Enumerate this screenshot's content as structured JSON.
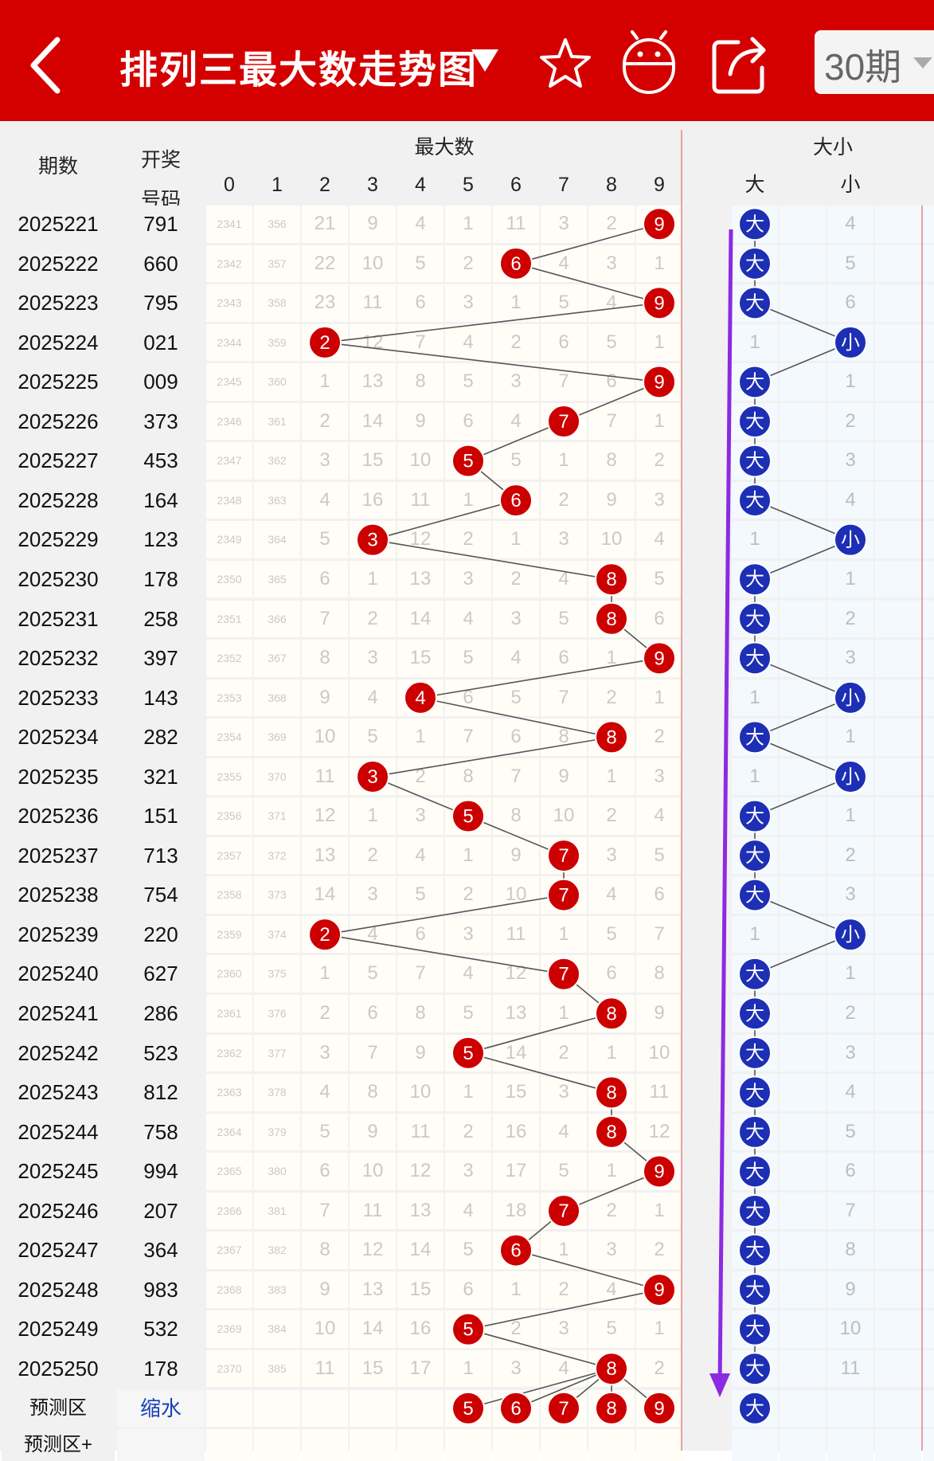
{
  "header": {
    "title": "排列三最大数走势图",
    "period_selector": "30期",
    "icons": [
      "back-arrow-icon",
      "dropdown-triangle-icon",
      "star-icon",
      "robot-icon",
      "share-icon",
      "chevron-down-icon"
    ]
  },
  "table_headers": {
    "period": "期数",
    "draw_top": "开奖",
    "draw_bottom": "号码",
    "max_group": "最大数",
    "size_group": "大小",
    "digits": [
      "0",
      "1",
      "2",
      "3",
      "4",
      "5",
      "6",
      "7",
      "8",
      "9"
    ],
    "size_cols": [
      "大",
      "",
      "小",
      ""
    ]
  },
  "colors": {
    "header_bg": "#d40000",
    "ball_red": "#cc0000",
    "ball_blue": "#1d2fb5",
    "trend_line": "#8a2be2"
  },
  "rows": [
    {
      "period": "2025221",
      "draw": "791",
      "cells": [
        "2341",
        "356",
        "21",
        "9",
        "4",
        "1",
        "11",
        "3",
        "2",
        "9"
      ],
      "max": 9,
      "size": "大",
      "size_cells": [
        "大",
        "",
        "4",
        ""
      ]
    },
    {
      "period": "2025222",
      "draw": "660",
      "cells": [
        "2342",
        "357",
        "22",
        "10",
        "5",
        "2",
        "6",
        "4",
        "3",
        "1"
      ],
      "max": 6,
      "size": "大",
      "size_cells": [
        "大",
        "",
        "5",
        ""
      ]
    },
    {
      "period": "2025223",
      "draw": "795",
      "cells": [
        "2343",
        "358",
        "23",
        "11",
        "6",
        "3",
        "1",
        "5",
        "4",
        "9"
      ],
      "max": 9,
      "size": "大",
      "size_cells": [
        "大",
        "",
        "6",
        ""
      ]
    },
    {
      "period": "2025224",
      "draw": "021",
      "cells": [
        "2344",
        "359",
        "2",
        "12",
        "7",
        "4",
        "2",
        "6",
        "5",
        "1"
      ],
      "max": 2,
      "size": "小",
      "size_cells": [
        "1",
        "",
        "小",
        ""
      ]
    },
    {
      "period": "2025225",
      "draw": "009",
      "cells": [
        "2345",
        "360",
        "1",
        "13",
        "8",
        "5",
        "3",
        "7",
        "6",
        "9"
      ],
      "max": 9,
      "size": "大",
      "size_cells": [
        "大",
        "",
        "1",
        ""
      ]
    },
    {
      "period": "2025226",
      "draw": "373",
      "cells": [
        "2346",
        "361",
        "2",
        "14",
        "9",
        "6",
        "4",
        "7",
        "7",
        "1"
      ],
      "max": 7,
      "size": "大",
      "size_cells": [
        "大",
        "",
        "2",
        ""
      ]
    },
    {
      "period": "2025227",
      "draw": "453",
      "cells": [
        "2347",
        "362",
        "3",
        "15",
        "10",
        "5",
        "5",
        "1",
        "8",
        "2"
      ],
      "max": 5,
      "size": "大",
      "size_cells": [
        "大",
        "",
        "3",
        ""
      ]
    },
    {
      "period": "2025228",
      "draw": "164",
      "cells": [
        "2348",
        "363",
        "4",
        "16",
        "11",
        "1",
        "6",
        "2",
        "9",
        "3"
      ],
      "max": 6,
      "size": "大",
      "size_cells": [
        "大",
        "",
        "4",
        ""
      ]
    },
    {
      "period": "2025229",
      "draw": "123",
      "cells": [
        "2349",
        "364",
        "5",
        "3",
        "12",
        "2",
        "1",
        "3",
        "10",
        "4"
      ],
      "max": 3,
      "size": "小",
      "size_cells": [
        "1",
        "",
        "小",
        ""
      ]
    },
    {
      "period": "2025230",
      "draw": "178",
      "cells": [
        "2350",
        "365",
        "6",
        "1",
        "13",
        "3",
        "2",
        "4",
        "8",
        "5"
      ],
      "max": 8,
      "size": "大",
      "size_cells": [
        "大",
        "",
        "1",
        ""
      ]
    },
    {
      "period": "2025231",
      "draw": "258",
      "cells": [
        "2351",
        "366",
        "7",
        "2",
        "14",
        "4",
        "3",
        "5",
        "8",
        "6"
      ],
      "max": 8,
      "size": "大",
      "size_cells": [
        "大",
        "",
        "2",
        ""
      ]
    },
    {
      "period": "2025232",
      "draw": "397",
      "cells": [
        "2352",
        "367",
        "8",
        "3",
        "15",
        "5",
        "4",
        "6",
        "1",
        "9"
      ],
      "max": 9,
      "size": "大",
      "size_cells": [
        "大",
        "",
        "3",
        ""
      ]
    },
    {
      "period": "2025233",
      "draw": "143",
      "cells": [
        "2353",
        "368",
        "9",
        "4",
        "4",
        "6",
        "5",
        "7",
        "2",
        "1"
      ],
      "max": 4,
      "size": "小",
      "size_cells": [
        "1",
        "",
        "小",
        ""
      ]
    },
    {
      "period": "2025234",
      "draw": "282",
      "cells": [
        "2354",
        "369",
        "10",
        "5",
        "1",
        "7",
        "6",
        "8",
        "8",
        "2"
      ],
      "max": 8,
      "size": "大",
      "size_cells": [
        "大",
        "",
        "1",
        ""
      ]
    },
    {
      "period": "2025235",
      "draw": "321",
      "cells": [
        "2355",
        "370",
        "11",
        "3",
        "2",
        "8",
        "7",
        "9",
        "1",
        "3"
      ],
      "max": 3,
      "size": "小",
      "size_cells": [
        "1",
        "",
        "小",
        ""
      ]
    },
    {
      "period": "2025236",
      "draw": "151",
      "cells": [
        "2356",
        "371",
        "12",
        "1",
        "3",
        "5",
        "8",
        "10",
        "2",
        "4"
      ],
      "max": 5,
      "size": "大",
      "size_cells": [
        "大",
        "",
        "1",
        ""
      ]
    },
    {
      "period": "2025237",
      "draw": "713",
      "cells": [
        "2357",
        "372",
        "13",
        "2",
        "4",
        "1",
        "9",
        "7",
        "3",
        "5"
      ],
      "max": 7,
      "size": "大",
      "size_cells": [
        "大",
        "",
        "2",
        ""
      ]
    },
    {
      "period": "2025238",
      "draw": "754",
      "cells": [
        "2358",
        "373",
        "14",
        "3",
        "5",
        "2",
        "10",
        "7",
        "4",
        "6"
      ],
      "max": 7,
      "size": "大",
      "size_cells": [
        "大",
        "",
        "3",
        ""
      ]
    },
    {
      "period": "2025239",
      "draw": "220",
      "cells": [
        "2359",
        "374",
        "2",
        "4",
        "6",
        "3",
        "11",
        "1",
        "5",
        "7"
      ],
      "max": 2,
      "size": "小",
      "size_cells": [
        "1",
        "",
        "小",
        ""
      ]
    },
    {
      "period": "2025240",
      "draw": "627",
      "cells": [
        "2360",
        "375",
        "1",
        "5",
        "7",
        "4",
        "12",
        "7",
        "6",
        "8"
      ],
      "max": 7,
      "size": "大",
      "size_cells": [
        "大",
        "",
        "1",
        ""
      ]
    },
    {
      "period": "2025241",
      "draw": "286",
      "cells": [
        "2361",
        "376",
        "2",
        "6",
        "8",
        "5",
        "13",
        "1",
        "8",
        "9"
      ],
      "max": 8,
      "size": "大",
      "size_cells": [
        "大",
        "",
        "2",
        ""
      ]
    },
    {
      "period": "2025242",
      "draw": "523",
      "cells": [
        "2362",
        "377",
        "3",
        "7",
        "9",
        "5",
        "14",
        "2",
        "1",
        "10"
      ],
      "max": 5,
      "size": "大",
      "size_cells": [
        "大",
        "",
        "3",
        ""
      ]
    },
    {
      "period": "2025243",
      "draw": "812",
      "cells": [
        "2363",
        "378",
        "4",
        "8",
        "10",
        "1",
        "15",
        "3",
        "8",
        "11"
      ],
      "max": 8,
      "size": "大",
      "size_cells": [
        "大",
        "",
        "4",
        ""
      ]
    },
    {
      "period": "2025244",
      "draw": "758",
      "cells": [
        "2364",
        "379",
        "5",
        "9",
        "11",
        "2",
        "16",
        "4",
        "8",
        "12"
      ],
      "max": 8,
      "size": "大",
      "size_cells": [
        "大",
        "",
        "5",
        ""
      ]
    },
    {
      "period": "2025245",
      "draw": "994",
      "cells": [
        "2365",
        "380",
        "6",
        "10",
        "12",
        "3",
        "17",
        "5",
        "1",
        "9"
      ],
      "max": 9,
      "size": "大",
      "size_cells": [
        "大",
        "",
        "6",
        ""
      ]
    },
    {
      "period": "2025246",
      "draw": "207",
      "cells": [
        "2366",
        "381",
        "7",
        "11",
        "13",
        "4",
        "18",
        "7",
        "2",
        "1"
      ],
      "max": 7,
      "size": "大",
      "size_cells": [
        "大",
        "",
        "7",
        ""
      ]
    },
    {
      "period": "2025247",
      "draw": "364",
      "cells": [
        "2367",
        "382",
        "8",
        "12",
        "14",
        "5",
        "6",
        "1",
        "3",
        "2"
      ],
      "max": 6,
      "size": "大",
      "size_cells": [
        "大",
        "",
        "8",
        ""
      ]
    },
    {
      "period": "2025248",
      "draw": "983",
      "cells": [
        "2368",
        "383",
        "9",
        "13",
        "15",
        "6",
        "1",
        "2",
        "4",
        "9"
      ],
      "max": 9,
      "size": "大",
      "size_cells": [
        "大",
        "",
        "9",
        ""
      ]
    },
    {
      "period": "2025249",
      "draw": "532",
      "cells": [
        "2369",
        "384",
        "10",
        "14",
        "16",
        "5",
        "2",
        "3",
        "5",
        "1"
      ],
      "max": 5,
      "size": "大",
      "size_cells": [
        "大",
        "",
        "10",
        ""
      ]
    },
    {
      "period": "2025250",
      "draw": "178",
      "cells": [
        "2370",
        "385",
        "11",
        "15",
        "17",
        "1",
        "3",
        "4",
        "8",
        "2"
      ],
      "max": 8,
      "size": "大",
      "size_cells": [
        "大",
        "",
        "11",
        ""
      ]
    }
  ],
  "prediction": {
    "label": "预测区",
    "value": "缩水",
    "balls": [
      "5",
      "6",
      "7",
      "8",
      "9"
    ],
    "size_ball": "大",
    "next_label": "预测区+"
  }
}
